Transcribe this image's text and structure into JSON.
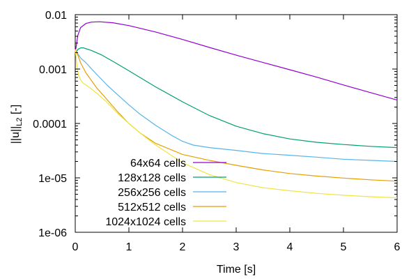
{
  "chart_data": {
    "type": "line",
    "title": "",
    "xlabel": "Time [s]",
    "ylabel_main": "||u||",
    "ylabel_sub": "L2",
    "ylabel_unit": " [-]",
    "xlim": [
      0,
      6
    ],
    "ylim": [
      1e-06,
      0.01
    ],
    "yscale": "log",
    "grid": false,
    "legend_position": "bottom-left",
    "x_ticks": [
      0,
      1,
      2,
      3,
      4,
      5,
      6
    ],
    "x_tick_labels": [
      "0",
      "1",
      "2",
      "3",
      "4",
      "5",
      "6"
    ],
    "y_ticks": [
      1e-06,
      1e-05,
      0.0001,
      0.001,
      0.01
    ],
    "y_tick_labels": [
      "1e-06",
      "1e-05",
      "0.0001",
      "0.001",
      "0.01"
    ],
    "series": [
      {
        "name": "64x64 cells",
        "color": "#9400d3",
        "x": [
          0,
          0.05,
          0.1,
          0.2,
          0.3,
          0.45,
          0.7,
          1.0,
          1.5,
          2.0,
          2.5,
          3.0,
          3.5,
          4.0,
          4.5,
          5.0,
          5.5,
          6.0
        ],
        "y": [
          0.002,
          0.0042,
          0.0058,
          0.0069,
          0.0073,
          0.0074,
          0.0071,
          0.0063,
          0.0048,
          0.0035,
          0.0025,
          0.0018,
          0.00132,
          0.00097,
          0.00071,
          0.00051,
          0.00037,
          0.00027
        ]
      },
      {
        "name": "128x128 cells",
        "color": "#009e73",
        "x": [
          0,
          0.05,
          0.1,
          0.15,
          0.3,
          0.5,
          0.75,
          1.0,
          1.5,
          2.0,
          2.5,
          3.0,
          3.5,
          4.0,
          4.5,
          5.0,
          5.5,
          6.0
        ],
        "y": [
          0.0019,
          0.0023,
          0.00245,
          0.00245,
          0.0022,
          0.0018,
          0.0013,
          0.00093,
          0.00047,
          0.00025,
          0.00014,
          8.9e-05,
          6.5e-05,
          5.2e-05,
          4.5e-05,
          4.1e-05,
          3.8e-05,
          3.6e-05
        ]
      },
      {
        "name": "256x256 cells",
        "color": "#56b4e9",
        "x": [
          0,
          0.05,
          0.1,
          0.2,
          0.4,
          0.6,
          0.8,
          1.0,
          1.2,
          1.5,
          1.8,
          2.0,
          2.2,
          2.5,
          3.0,
          3.5,
          4.0,
          4.5,
          5.0,
          5.5,
          6.0
        ],
        "y": [
          0.0022,
          0.0019,
          0.0016,
          0.0013,
          0.0008,
          0.0005,
          0.00033,
          0.00022,
          0.00015,
          9.2e-05,
          6e-05,
          4.7e-05,
          4e-05,
          3.6e-05,
          3.2e-05,
          2.8e-05,
          2.6e-05,
          2.4e-05,
          2.2e-05,
          2.1e-05,
          2e-05
        ]
      },
      {
        "name": "512x512 cells",
        "color": "#e69f00",
        "x": [
          0,
          0.05,
          0.1,
          0.2,
          0.4,
          0.6,
          0.8,
          1.0,
          1.2,
          1.5,
          2.0,
          2.5,
          3.0,
          3.5,
          4.0,
          4.5,
          5.0,
          5.5,
          6.0
        ],
        "y": [
          0.0023,
          0.0018,
          0.0013,
          0.00085,
          0.00045,
          0.00027,
          0.00016,
          0.0001,
          6.8e-05,
          4.3e-05,
          2.7e-05,
          2.1e-05,
          1.7e-05,
          1.4e-05,
          1.2e-05,
          1.08e-05,
          9.9e-06,
          9.2e-06,
          8.7e-06
        ]
      },
      {
        "name": "1024x1024 cells",
        "color": "#f0e442",
        "x": [
          0,
          0.03,
          0.06,
          0.1,
          0.15,
          0.25,
          0.4,
          0.6,
          0.8,
          1.0,
          1.2,
          1.5,
          2.0,
          2.5,
          3.0,
          3.5,
          4.0,
          4.5,
          5.0,
          5.5,
          6.0
        ],
        "y": [
          0.0023,
          0.0012,
          0.00078,
          0.00063,
          0.00055,
          0.00047,
          0.00036,
          0.00024,
          0.00015,
          0.0001,
          6.8e-05,
          4e-05,
          1.9e-05,
          1.15e-05,
          8.2e-06,
          6.6e-06,
          5.8e-06,
          5.2e-06,
          4.8e-06,
          4.5e-06,
          4.3e-06
        ]
      }
    ]
  }
}
